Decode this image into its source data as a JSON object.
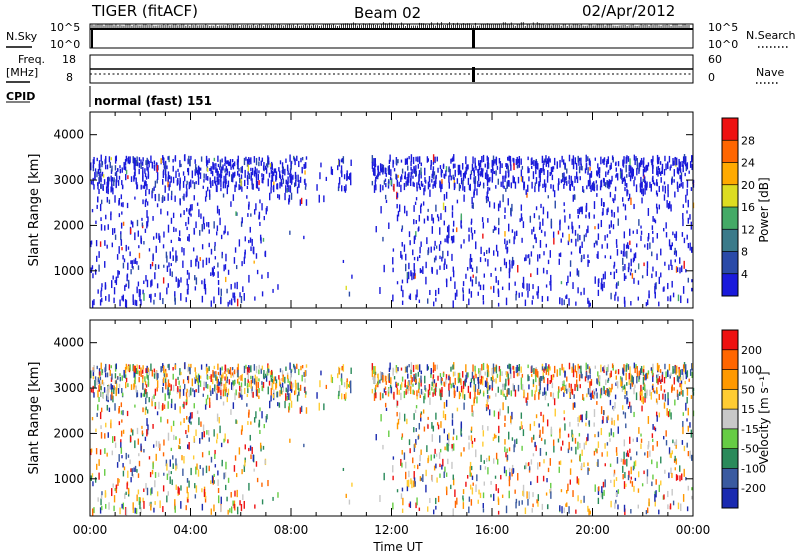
{
  "header": {
    "radar": "TIGER (fitACF)",
    "beam": "Beam 02",
    "date": "02/Apr/2012"
  },
  "status_panels": {
    "nsky": {
      "label": "N.Sky",
      "ticks": [
        "10^5",
        "10^0"
      ]
    },
    "nsearch": {
      "label": "N.Search",
      "ticks": [
        "10^5",
        "10^0"
      ]
    },
    "freq": {
      "label": "Freq.",
      "unit": "[MHz]",
      "ticks": [
        "18",
        "8"
      ]
    },
    "nave": {
      "label": "Nave",
      "ticks": [
        "60",
        "0"
      ]
    },
    "cpid": {
      "label": "CPID",
      "value": "normal (fast) 151"
    }
  },
  "chart_data": [
    {
      "type": "heatmap",
      "title": "",
      "xlabel": "Time UT",
      "ylabel": "Slant Range [km]",
      "xlim": [
        0,
        24
      ],
      "ylim": [
        180,
        4500
      ],
      "x_tick_labels": [
        "00:00",
        "04:00",
        "08:00",
        "12:00",
        "16:00",
        "20:00",
        "00:00"
      ],
      "y_tick_values": [
        1000,
        2000,
        3000,
        4000
      ],
      "colorbar": {
        "label": "Power [dB]",
        "tick_values": [
          4,
          8,
          12,
          16,
          20,
          24,
          28
        ],
        "range": [
          0,
          30
        ],
        "colors": [
          "#1a1adb",
          "#2a4aa8",
          "#3a7a8a",
          "#44aa66",
          "#dddd22",
          "#ffaa00",
          "#ff6600",
          "#ee1111"
        ]
      },
      "data_note_values": {
        "echo_range_band_km": [
          250,
          3500
        ],
        "data_gap_hours": [
          10.4,
          11.2
        ]
      }
    },
    {
      "type": "heatmap",
      "title": "",
      "xlabel": "Time UT",
      "ylabel": "Slant Range [km]",
      "xlim": [
        0,
        24
      ],
      "ylim": [
        180,
        4500
      ],
      "x_tick_labels": [
        "00:00",
        "04:00",
        "08:00",
        "12:00",
        "16:00",
        "20:00",
        "00:00"
      ],
      "y_tick_values": [
        1000,
        2000,
        3000,
        4000
      ],
      "colorbar": {
        "label": "Velocity [m s⁻¹]",
        "tick_values": [
          "200",
          "100",
          "50",
          "15",
          "-15",
          "-50",
          "-100",
          "-200"
        ],
        "colors": [
          "#1a2ab0",
          "#3a5aa0",
          "#2a8a5a",
          "#66cc44",
          "#c8c8c8",
          "#ffcc33",
          "#ff9900",
          "#ff6600",
          "#ee1111"
        ]
      }
    }
  ]
}
